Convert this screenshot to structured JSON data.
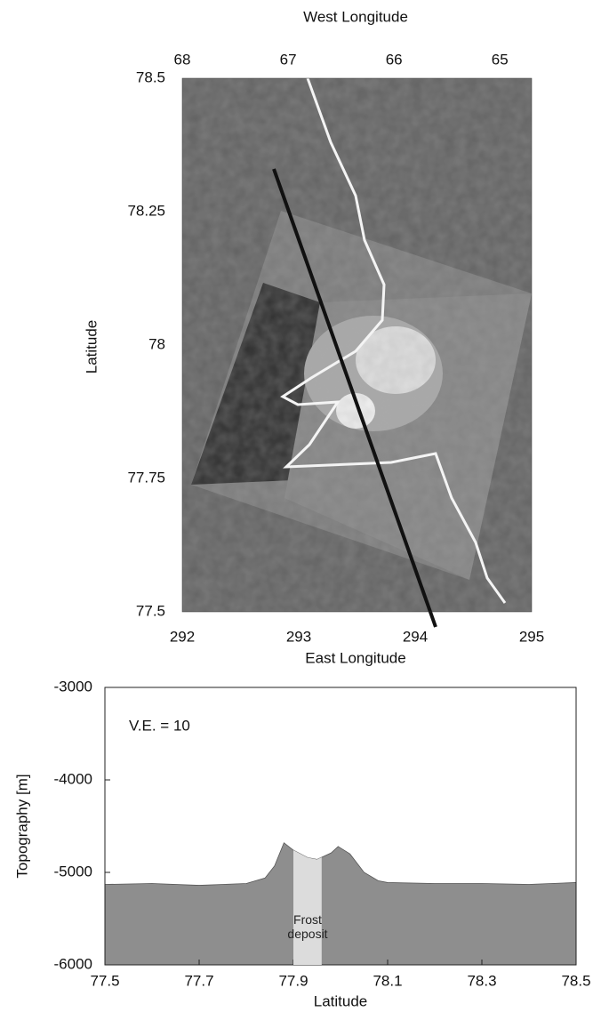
{
  "chart_data": [
    {
      "type": "image",
      "x2label": "West Longitude",
      "x2lim": [
        68,
        64.7
      ],
      "x2ticks": [
        68,
        67,
        66,
        65
      ],
      "xlabel": "East Longitude",
      "xlim": [
        292,
        295
      ],
      "xticks": [
        292,
        293,
        294,
        295
      ],
      "ylabel": "Latitude",
      "ylim": [
        77.5,
        78.5
      ],
      "yticks": [
        77.5,
        77.75,
        78,
        78.25,
        78.5
      ]
    },
    {
      "type": "area",
      "xlabel": "Latitude",
      "ylabel": "Topography [m]",
      "annotation": "V.E. = 10",
      "band_label": "Frost deposit",
      "band": [
        77.9,
        77.96
      ],
      "band_color": "#dcdcdc",
      "color": "#8e8e8e",
      "x": [
        77.5,
        77.6,
        77.7,
        77.8,
        77.84,
        77.86,
        77.88,
        77.9,
        77.93,
        77.95,
        77.98,
        77.995,
        78.02,
        78.05,
        78.08,
        78.1,
        78.2,
        78.3,
        78.4,
        78.5
      ],
      "values": [
        -5130,
        -5120,
        -5140,
        -5120,
        -5060,
        -4930,
        -4680,
        -4760,
        -4840,
        -4860,
        -4790,
        -4720,
        -4800,
        -5000,
        -5090,
        -5110,
        -5120,
        -5120,
        -5130,
        -5110
      ],
      "xlim": [
        77.5,
        78.5
      ],
      "xticks": [
        77.5,
        77.7,
        77.9,
        78.1,
        78.3,
        78.5
      ],
      "ylim": [
        -6000,
        -3000
      ],
      "yticks": [
        -6000,
        -5000,
        -4000,
        -3000
      ]
    }
  ]
}
